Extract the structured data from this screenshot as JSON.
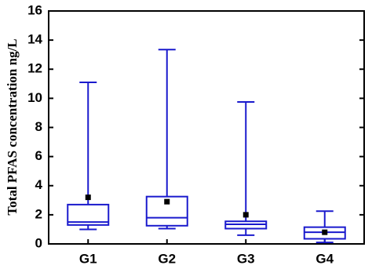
{
  "chart_data": {
    "type": "box",
    "y_label": "Total PFAS concentration ng/L",
    "categories": [
      "G1",
      "G2",
      "G3",
      "G4"
    ],
    "color": "#1a1acd",
    "boxes": [
      {
        "min": 1.0,
        "q1": 1.3,
        "median": 1.5,
        "q3": 2.7,
        "max": 11.1,
        "mean": 3.2
      },
      {
        "min": 1.05,
        "q1": 1.25,
        "median": 1.8,
        "q3": 3.25,
        "max": 13.35,
        "mean": 2.9
      },
      {
        "min": 0.6,
        "q1": 1.05,
        "median": 1.35,
        "q3": 1.55,
        "max": 9.75,
        "mean": 2.0
      },
      {
        "min": 0.1,
        "q1": 0.35,
        "median": 0.8,
        "q3": 1.15,
        "max": 2.25,
        "mean": 0.8
      }
    ],
    "ylim": [
      0,
      16
    ],
    "yticks": [
      0,
      2,
      4,
      6,
      8,
      10,
      12,
      14,
      16
    ]
  }
}
